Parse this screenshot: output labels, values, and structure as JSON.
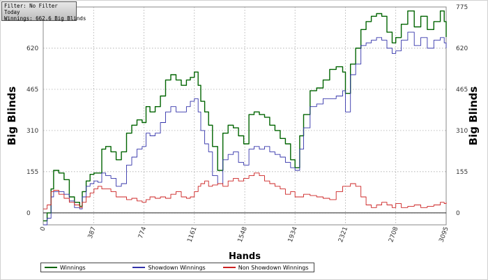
{
  "info_box": {
    "filter": "Filter: No Filter",
    "period": "Today",
    "winnings": "Winnings: 662.6 Big Blinds"
  },
  "chart_data": {
    "type": "line",
    "xlabel": "Hands",
    "ylabel_left": "Big Blinds",
    "ylabel_right": "Big Blinds",
    "xlim": [
      0,
      3095
    ],
    "ylim": [
      -45,
      775
    ],
    "x_ticks": [
      "0",
      "387",
      "774",
      "1161",
      "1548",
      "1934",
      "2321",
      "2708",
      "3095"
    ],
    "y_ticks": [
      "0",
      "155",
      "310",
      "465",
      "620",
      "775"
    ],
    "grid": true,
    "legend_position": "bottom",
    "series": [
      {
        "name": "Winnings",
        "color": "#006400",
        "x": [
          0,
          30,
          60,
          80,
          120,
          160,
          200,
          240,
          280,
          300,
          330,
          360,
          390,
          420,
          450,
          480,
          520,
          560,
          600,
          640,
          680,
          720,
          760,
          790,
          820,
          860,
          900,
          940,
          980,
          1020,
          1060,
          1100,
          1130,
          1161,
          1190,
          1210,
          1240,
          1270,
          1300,
          1340,
          1380,
          1420,
          1460,
          1500,
          1540,
          1580,
          1620,
          1660,
          1700,
          1740,
          1780,
          1820,
          1860,
          1900,
          1934,
          1970,
          2000,
          2050,
          2100,
          2150,
          2200,
          2250,
          2300,
          2321,
          2360,
          2400,
          2440,
          2480,
          2520,
          2560,
          2600,
          2640,
          2680,
          2708,
          2750,
          2800,
          2850,
          2900,
          2950,
          3000,
          3050,
          3080,
          3095
        ],
        "y": [
          -30,
          0,
          90,
          160,
          150,
          125,
          60,
          40,
          25,
          80,
          120,
          145,
          150,
          150,
          240,
          250,
          230,
          200,
          230,
          300,
          330,
          350,
          340,
          400,
          380,
          400,
          440,
          500,
          520,
          500,
          480,
          500,
          510,
          530,
          480,
          420,
          380,
          330,
          250,
          160,
          300,
          330,
          320,
          290,
          260,
          370,
          380,
          370,
          360,
          330,
          310,
          280,
          260,
          200,
          170,
          290,
          370,
          460,
          470,
          500,
          540,
          550,
          530,
          450,
          560,
          620,
          690,
          720,
          740,
          750,
          740,
          680,
          640,
          660,
          710,
          760,
          700,
          740,
          690,
          720,
          760,
          720,
          662
        ]
      },
      {
        "name": "Showdown Winnings",
        "color": "#3333aa",
        "x": [
          0,
          30,
          60,
          80,
          120,
          160,
          200,
          240,
          280,
          300,
          330,
          360,
          390,
          420,
          450,
          480,
          520,
          560,
          600,
          640,
          680,
          720,
          760,
          790,
          820,
          860,
          900,
          940,
          980,
          1020,
          1060,
          1100,
          1130,
          1161,
          1190,
          1210,
          1240,
          1270,
          1300,
          1340,
          1380,
          1420,
          1460,
          1500,
          1540,
          1580,
          1620,
          1660,
          1700,
          1740,
          1780,
          1820,
          1860,
          1900,
          1934,
          1970,
          2000,
          2050,
          2100,
          2150,
          2200,
          2250,
          2300,
          2321,
          2360,
          2400,
          2440,
          2480,
          2520,
          2560,
          2600,
          2640,
          2680,
          2708,
          2750,
          2800,
          2850,
          2900,
          2950,
          3000,
          3050,
          3080,
          3095
        ],
        "y": [
          -45,
          -20,
          60,
          80,
          80,
          70,
          45,
          20,
          15,
          60,
          100,
          110,
          120,
          115,
          150,
          140,
          130,
          100,
          110,
          180,
          210,
          240,
          250,
          300,
          290,
          300,
          340,
          380,
          400,
          380,
          380,
          400,
          420,
          430,
          380,
          310,
          260,
          230,
          140,
          110,
          200,
          220,
          230,
          190,
          180,
          240,
          250,
          240,
          250,
          230,
          220,
          210,
          190,
          170,
          160,
          240,
          320,
          400,
          410,
          430,
          430,
          440,
          460,
          380,
          520,
          560,
          630,
          640,
          650,
          660,
          650,
          620,
          600,
          610,
          650,
          680,
          630,
          660,
          620,
          650,
          660,
          640,
          620
        ]
      },
      {
        "name": "Non Showdown Winnings",
        "color": "#cc2222",
        "x": [
          0,
          30,
          60,
          80,
          120,
          160,
          200,
          240,
          280,
          300,
          330,
          360,
          390,
          420,
          450,
          480,
          520,
          560,
          600,
          640,
          680,
          720,
          760,
          790,
          820,
          860,
          900,
          940,
          980,
          1020,
          1060,
          1100,
          1130,
          1161,
          1190,
          1210,
          1240,
          1270,
          1300,
          1340,
          1380,
          1420,
          1460,
          1500,
          1540,
          1580,
          1620,
          1660,
          1700,
          1740,
          1780,
          1820,
          1860,
          1900,
          1934,
          1970,
          2000,
          2050,
          2100,
          2150,
          2200,
          2250,
          2300,
          2321,
          2360,
          2400,
          2440,
          2480,
          2520,
          2560,
          2600,
          2640,
          2680,
          2708,
          2750,
          2800,
          2850,
          2900,
          2950,
          3000,
          3050,
          3080,
          3095
        ],
        "y": [
          15,
          30,
          80,
          85,
          70,
          55,
          40,
          30,
          20,
          40,
          60,
          75,
          90,
          100,
          90,
          90,
          80,
          60,
          60,
          50,
          55,
          45,
          40,
          50,
          60,
          55,
          60,
          55,
          70,
          80,
          60,
          55,
          60,
          80,
          100,
          110,
          120,
          100,
          105,
          110,
          100,
          120,
          130,
          120,
          130,
          140,
          150,
          140,
          120,
          110,
          100,
          90,
          70,
          80,
          60,
          60,
          70,
          65,
          60,
          55,
          50,
          80,
          100,
          100,
          110,
          100,
          60,
          30,
          20,
          30,
          40,
          30,
          20,
          35,
          20,
          25,
          30,
          20,
          25,
          30,
          40,
          35,
          40
        ]
      }
    ]
  }
}
